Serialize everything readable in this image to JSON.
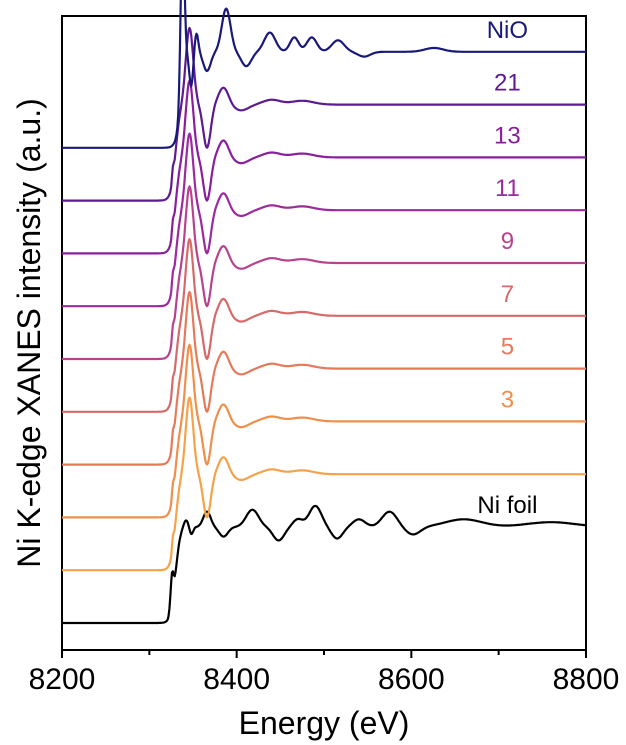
{
  "chart_data": {
    "type": "line",
    "xlabel": "Energy (eV)",
    "ylabel": "Ni K-edge XANES intensity (a.u.)",
    "xlim": [
      8200,
      8800
    ],
    "x_ticks": [
      "8200",
      "8400",
      "8600",
      "8800"
    ],
    "x_tick_values": [
      8200,
      8400,
      8600,
      8800
    ],
    "x_minor_tick_values": [
      8300,
      8500,
      8700
    ],
    "y_ticks": "none",
    "grid": false,
    "legend": "none",
    "series": [
      {
        "label": "Ni foil",
        "color": "#000000",
        "kind": "foil",
        "baseline": 0.0,
        "edge": 8330,
        "label_x": 8710
      },
      {
        "label": "",
        "color": "#f5a24a",
        "kind": "sample",
        "baseline": 0.55,
        "edge": 8330,
        "label_x": null
      },
      {
        "label": "3",
        "color": "#ef8f4b",
        "kind": "sample",
        "baseline": 1.1,
        "edge": 8330,
        "label_x": 8710
      },
      {
        "label": "5",
        "color": "#e47a5a",
        "kind": "sample",
        "baseline": 1.65,
        "edge": 8330,
        "label_x": 8710
      },
      {
        "label": "7",
        "color": "#d66a6a",
        "kind": "sample",
        "baseline": 2.2,
        "edge": 8330,
        "label_x": 8710
      },
      {
        "label": "9",
        "color": "#b7438e",
        "kind": "sample",
        "baseline": 2.75,
        "edge": 8330,
        "label_x": 8710
      },
      {
        "label": "11",
        "color": "#9c2a9e",
        "kind": "sample",
        "baseline": 3.3,
        "edge": 8330,
        "label_x": 8710
      },
      {
        "label": "13",
        "color": "#8a1e9d",
        "kind": "sample",
        "baseline": 3.85,
        "edge": 8330,
        "label_x": 8710
      },
      {
        "label": "21",
        "color": "#5e1a8f",
        "kind": "sample",
        "baseline": 4.4,
        "edge": 8330,
        "label_x": 8710
      },
      {
        "label": "NiO",
        "color": "#19197a",
        "kind": "nio",
        "baseline": 4.95,
        "edge": 8336,
        "label_x": 8710
      }
    ]
  }
}
